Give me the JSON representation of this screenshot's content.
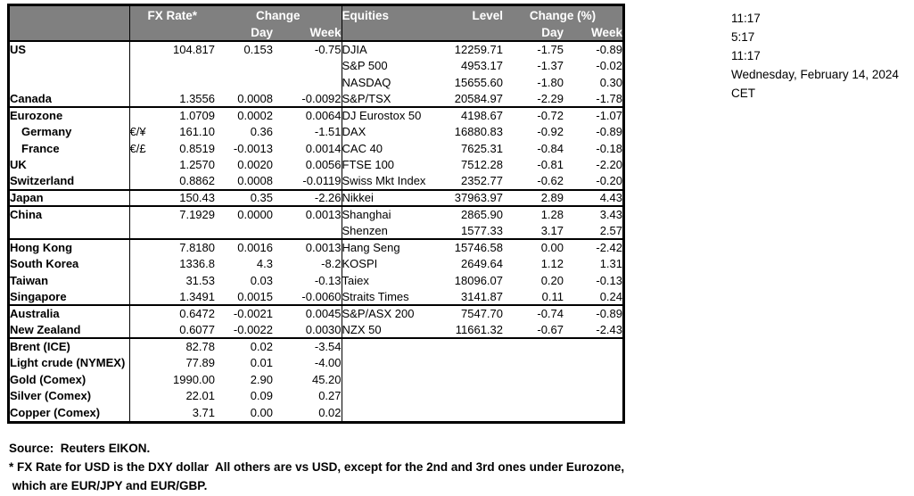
{
  "info_panel": {
    "lines": [
      "11:17",
      "5:17",
      "11:17",
      "Wednesday, February 14, 2024",
      "CET"
    ]
  },
  "table": {
    "fx_header": {
      "title": "FX Rate*",
      "change": "Change",
      "day": "Day",
      "week": "Week"
    },
    "eq_header": {
      "title": "Equities",
      "level": "Level",
      "change": "Change (%)",
      "day": "Day",
      "week": "Week"
    },
    "rows": [
      {
        "name": "US",
        "sym": "",
        "fx": "104.817",
        "fx_day": "0.153",
        "fx_week": "-0.75",
        "eq": "DJIA",
        "level": "12259.71",
        "eq_day": "-1.75",
        "eq_week": "-0.89",
        "indent": false,
        "divider": false
      },
      {
        "name": "",
        "sym": "",
        "fx": "",
        "fx_day": "",
        "fx_week": "",
        "eq": "S&P 500",
        "level": "4953.17",
        "eq_day": "-1.37",
        "eq_week": "-0.02",
        "indent": false,
        "divider": false
      },
      {
        "name": "",
        "sym": "",
        "fx": "",
        "fx_day": "",
        "fx_week": "",
        "eq": "NASDAQ",
        "level": "15655.60",
        "eq_day": "-1.80",
        "eq_week": "0.30",
        "indent": false,
        "divider": false
      },
      {
        "name": "Canada",
        "sym": "",
        "fx": "1.3556",
        "fx_day": "0.0008",
        "fx_week": "-0.0092",
        "eq": "S&P/TSX",
        "level": "20584.97",
        "eq_day": "-2.29",
        "eq_week": "-1.78",
        "indent": false,
        "divider": true
      },
      {
        "name": "Eurozone",
        "sym": "",
        "fx": "1.0709",
        "fx_day": "0.0002",
        "fx_week": "0.0064",
        "eq": "DJ Eurostox 50",
        "level": "4198.67",
        "eq_day": "-0.72",
        "eq_week": "-1.07",
        "indent": false,
        "divider": false
      },
      {
        "name": "Germany",
        "sym": "€/¥",
        "fx": "161.10",
        "fx_day": "0.36",
        "fx_week": "-1.51",
        "eq": "DAX",
        "level": "16880.83",
        "eq_day": "-0.92",
        "eq_week": "-0.89",
        "indent": true,
        "divider": false
      },
      {
        "name": "France",
        "sym": "€/£",
        "fx": "0.8519",
        "fx_day": "-0.0013",
        "fx_week": "0.0014",
        "eq": "CAC 40",
        "level": "7625.31",
        "eq_day": "-0.84",
        "eq_week": "-0.18",
        "indent": true,
        "divider": false
      },
      {
        "name": "UK",
        "sym": "",
        "fx": "1.2570",
        "fx_day": "0.0020",
        "fx_week": "0.0056",
        "eq": "FTSE 100",
        "level": "7512.28",
        "eq_day": "-0.81",
        "eq_week": "-2.20",
        "indent": false,
        "divider": false
      },
      {
        "name": "Switzerland",
        "sym": "",
        "fx": "0.8862",
        "fx_day": "0.0008",
        "fx_week": "-0.0119",
        "eq": "Swiss Mkt Index",
        "level": "2352.77",
        "eq_day": "-0.62",
        "eq_week": "-0.20",
        "indent": false,
        "divider": true
      },
      {
        "name": "Japan",
        "sym": "",
        "fx": "150.43",
        "fx_day": "0.35",
        "fx_week": "-2.26",
        "eq": "Nikkei",
        "level": "37963.97",
        "eq_day": "2.89",
        "eq_week": "4.43",
        "indent": false,
        "divider": true
      },
      {
        "name": "China",
        "sym": "",
        "fx": "7.1929",
        "fx_day": "0.0000",
        "fx_week": "0.0013",
        "eq": "Shanghai",
        "level": "2865.90",
        "eq_day": "1.28",
        "eq_week": "3.43",
        "indent": false,
        "divider": false
      },
      {
        "name": "",
        "sym": "",
        "fx": "",
        "fx_day": "",
        "fx_week": "",
        "eq": "Shenzen",
        "level": "1577.33",
        "eq_day": "3.17",
        "eq_week": "2.57",
        "indent": false,
        "divider": true
      },
      {
        "name": "Hong Kong",
        "sym": "",
        "fx": "7.8180",
        "fx_day": "0.0016",
        "fx_week": "0.0013",
        "eq": "Hang Seng",
        "level": "15746.58",
        "eq_day": "0.00",
        "eq_week": "-2.42",
        "indent": false,
        "divider": false
      },
      {
        "name": "South Korea",
        "sym": "",
        "fx": "1336.8",
        "fx_day": "4.3",
        "fx_week": "-8.2",
        "eq": "KOSPI",
        "level": "2649.64",
        "eq_day": "1.12",
        "eq_week": "1.31",
        "indent": false,
        "divider": false
      },
      {
        "name": "Taiwan",
        "sym": "",
        "fx": "31.53",
        "fx_day": "0.03",
        "fx_week": "-0.13",
        "eq": "Taiex",
        "level": "18096.07",
        "eq_day": "0.20",
        "eq_week": "-0.13",
        "indent": false,
        "divider": false
      },
      {
        "name": "Singapore",
        "sym": "",
        "fx": "1.3491",
        "fx_day": "0.0015",
        "fx_week": "-0.0060",
        "eq": "Straits Times",
        "level": "3141.87",
        "eq_day": "0.11",
        "eq_week": "0.24",
        "indent": false,
        "divider": true
      },
      {
        "name": "Australia",
        "sym": "",
        "fx": "0.6472",
        "fx_day": "-0.0021",
        "fx_week": "0.0045",
        "eq": "S&P/ASX  200",
        "level": "7547.70",
        "eq_day": "-0.74",
        "eq_week": "-0.89",
        "indent": false,
        "divider": false
      },
      {
        "name": "New Zealand",
        "sym": "",
        "fx": "0.6077",
        "fx_day": "-0.0022",
        "fx_week": "0.0030",
        "eq": "NZX 50",
        "level": "11661.32",
        "eq_day": "-0.67",
        "eq_week": "-2.43",
        "indent": false,
        "divider": true
      },
      {
        "name": "Brent (ICE)",
        "sym": "",
        "fx": "82.78",
        "fx_day": "0.02",
        "fx_week": "-3.54",
        "eq": "",
        "level": "",
        "eq_day": "",
        "eq_week": "",
        "indent": false,
        "divider": false
      },
      {
        "name": "Light crude (NYMEX)",
        "sym": "",
        "fx": "77.89",
        "fx_day": "0.01",
        "fx_week": "-4.00",
        "eq": "",
        "level": "",
        "eq_day": "",
        "eq_week": "",
        "indent": false,
        "divider": false
      },
      {
        "name": "Gold (Comex)",
        "sym": "",
        "fx": "1990.00",
        "fx_day": "2.90",
        "fx_week": "45.20",
        "eq": "",
        "level": "",
        "eq_day": "",
        "eq_week": "",
        "indent": false,
        "divider": false
      },
      {
        "name": "Silver (Comex)",
        "sym": "",
        "fx": "22.01",
        "fx_day": "0.09",
        "fx_week": "0.27",
        "eq": "",
        "level": "",
        "eq_day": "",
        "eq_week": "",
        "indent": false,
        "divider": false
      },
      {
        "name": "Copper (Comex)",
        "sym": "",
        "fx": "3.71",
        "fx_day": "0.00",
        "fx_week": "0.02",
        "eq": "",
        "level": "",
        "eq_day": "",
        "eq_week": "",
        "indent": false,
        "divider": false
      }
    ]
  },
  "footer": {
    "source": "Source:  Reuters EIKON.",
    "note1": "* FX Rate for USD is the DXY dollar  All others are vs USD, except for the 2nd and 3rd ones under Eurozone,",
    "note2": " which are EUR/JPY and EUR/GBP."
  },
  "colors": {
    "header_bg": "#808080",
    "header_text": "#ffffff",
    "border": "#000000"
  }
}
